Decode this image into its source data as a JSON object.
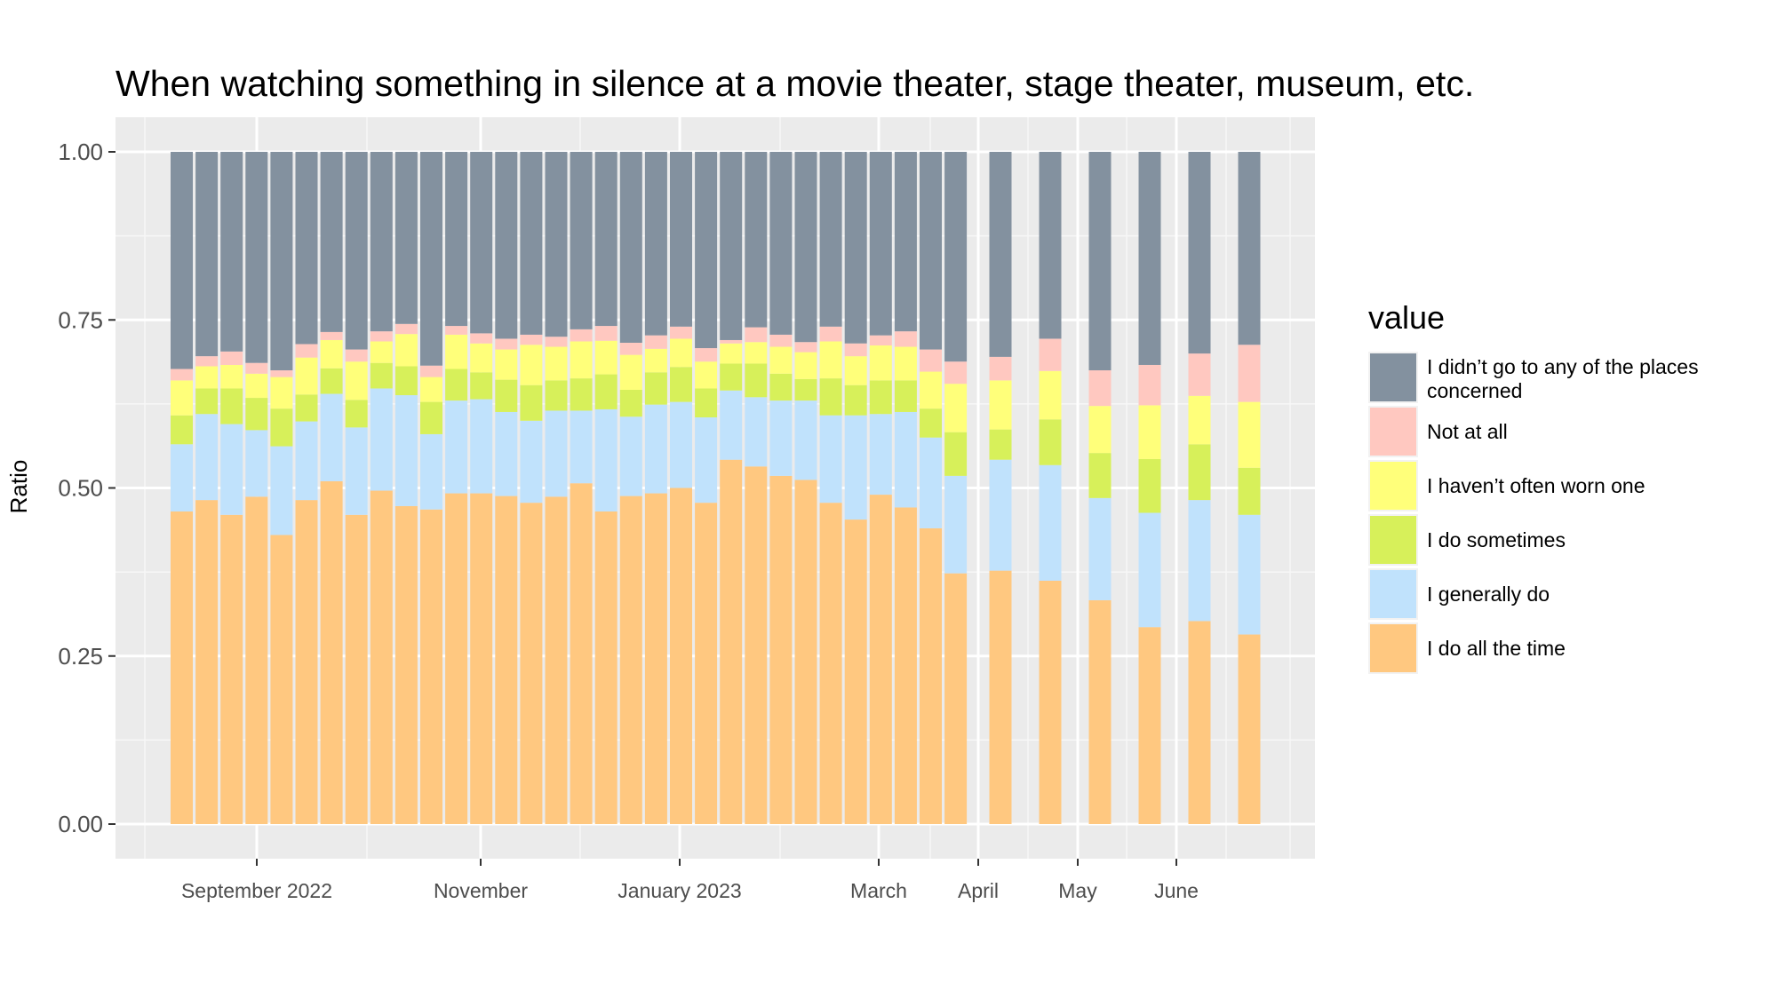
{
  "chart_data": {
    "type": "bar",
    "stacked": true,
    "title": "When watching something in silence at a movie theater, stage theater, museum, etc.",
    "xlabel": "",
    "ylabel": "Ratio",
    "ylim": [
      0,
      1
    ],
    "yticks": [
      "0.00",
      "0.25",
      "0.50",
      "0.75",
      "1.00"
    ],
    "ytick_values": [
      0,
      0.25,
      0.5,
      0.75,
      1.0
    ],
    "xtick_labels": [
      "September 2022",
      "November",
      "January 2023",
      "March",
      "April",
      "May",
      "June"
    ],
    "grid": true,
    "legend_position": "right",
    "legend_title": "value",
    "series": [
      {
        "name": "I do all the time",
        "color": "#FFC880",
        "values": [
          0.465,
          0.482,
          0.46,
          0.487,
          0.43,
          0.482,
          0.51,
          0.46,
          0.496,
          0.473,
          0.468,
          0.492,
          0.492,
          0.488,
          0.478,
          0.487,
          0.507,
          0.465,
          0.488,
          0.492,
          0.5,
          0.478,
          0.542,
          0.532,
          0.518,
          0.512,
          0.478,
          0.453,
          0.49,
          0.471,
          0.44,
          0.373,
          0.377,
          0.362,
          0.333,
          0.293,
          0.302,
          0.282
        ]
      },
      {
        "name": "I generally do",
        "color": "#C0E2FC",
        "values": [
          0.1,
          0.128,
          0.135,
          0.099,
          0.132,
          0.117,
          0.13,
          0.13,
          0.152,
          0.165,
          0.112,
          0.138,
          0.14,
          0.125,
          0.122,
          0.128,
          0.108,
          0.152,
          0.118,
          0.132,
          0.128,
          0.127,
          0.103,
          0.103,
          0.112,
          0.118,
          0.13,
          0.155,
          0.12,
          0.142,
          0.135,
          0.145,
          0.165,
          0.172,
          0.152,
          0.17,
          0.18,
          0.178
        ]
      },
      {
        "name": "I do sometimes",
        "color": "#D7F05A",
        "values": [
          0.043,
          0.038,
          0.053,
          0.048,
          0.056,
          0.04,
          0.038,
          0.041,
          0.038,
          0.043,
          0.048,
          0.047,
          0.04,
          0.048,
          0.053,
          0.045,
          0.048,
          0.052,
          0.04,
          0.048,
          0.052,
          0.043,
          0.04,
          0.05,
          0.04,
          0.032,
          0.055,
          0.045,
          0.05,
          0.047,
          0.043,
          0.065,
          0.045,
          0.068,
          0.067,
          0.08,
          0.083,
          0.07
        ]
      },
      {
        "name": "I haven’t often worn one",
        "color": "#FFFF7A",
        "values": [
          0.052,
          0.033,
          0.035,
          0.036,
          0.047,
          0.055,
          0.042,
          0.057,
          0.032,
          0.048,
          0.037,
          0.051,
          0.043,
          0.045,
          0.06,
          0.05,
          0.055,
          0.05,
          0.052,
          0.035,
          0.042,
          0.04,
          0.03,
          0.032,
          0.04,
          0.04,
          0.055,
          0.043,
          0.052,
          0.05,
          0.055,
          0.072,
          0.073,
          0.072,
          0.07,
          0.08,
          0.072,
          0.098
        ]
      },
      {
        "name": "Not at all",
        "color": "#FFC8C0",
        "values": [
          0.017,
          0.015,
          0.02,
          0.016,
          0.01,
          0.02,
          0.012,
          0.018,
          0.015,
          0.015,
          0.017,
          0.013,
          0.015,
          0.016,
          0.015,
          0.015,
          0.018,
          0.022,
          0.018,
          0.02,
          0.018,
          0.02,
          0.005,
          0.022,
          0.018,
          0.015,
          0.022,
          0.019,
          0.015,
          0.023,
          0.033,
          0.033,
          0.035,
          0.048,
          0.053,
          0.06,
          0.063,
          0.085
        ]
      },
      {
        "name": "I didn’t go to any of the places concerned",
        "color": "#83919F",
        "values": [
          0.323,
          0.304,
          0.297,
          0.314,
          0.325,
          0.286,
          0.268,
          0.294,
          0.267,
          0.256,
          0.318,
          0.259,
          0.27,
          0.278,
          0.272,
          0.275,
          0.264,
          0.259,
          0.284,
          0.273,
          0.26,
          0.292,
          0.28,
          0.261,
          0.272,
          0.283,
          0.26,
          0.285,
          0.273,
          0.267,
          0.294,
          0.312,
          0.305,
          0.278,
          0.325,
          0.317,
          0.3,
          0.287
        ]
      }
    ]
  }
}
